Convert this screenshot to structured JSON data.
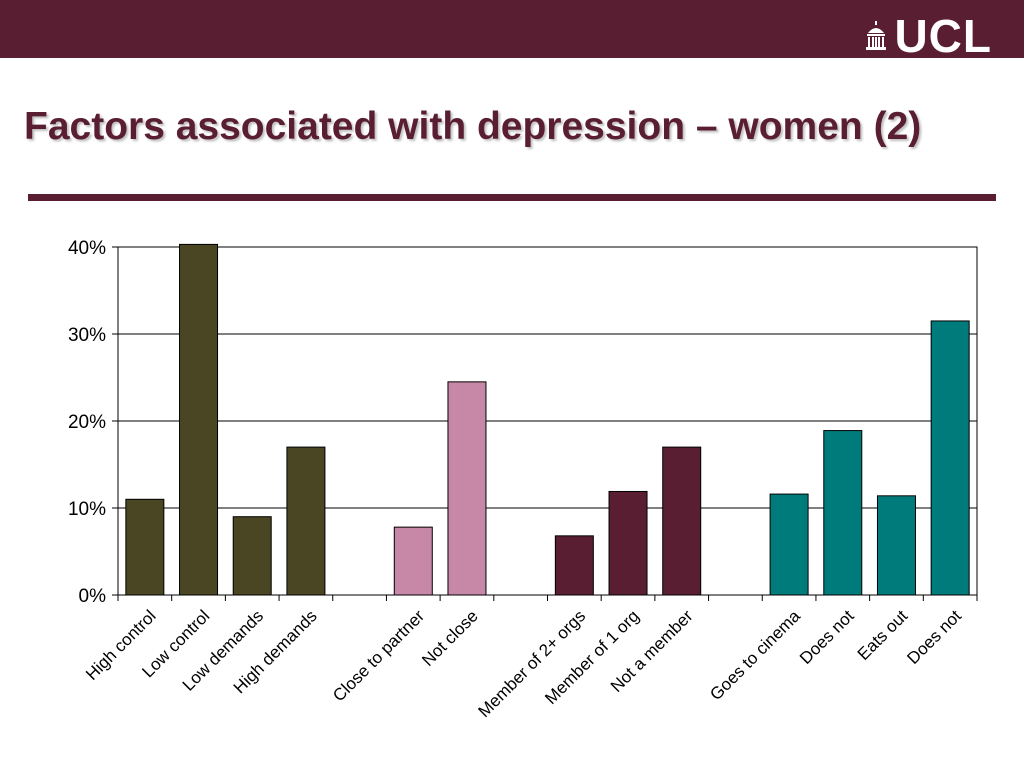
{
  "header": {
    "logo_text": "UCL",
    "logo_icon": "portico-dome-icon"
  },
  "slide": {
    "title": "Factors associated with depression – women (2)"
  },
  "colors": {
    "brand": "#5a1e32",
    "olive": "#4a4523",
    "pink": "#c788a8",
    "maroon": "#5a1e32",
    "teal": "#007b7b"
  },
  "chart_data": {
    "type": "bar",
    "categories": [
      "High control",
      "Low control",
      "Low demands",
      "High demands",
      "",
      "Close to partner",
      "Not close",
      "",
      "Member of 2+ orgs",
      "Member of 1 org",
      "Not a member",
      "",
      "Goes to cinema",
      "Does not",
      "Eats out",
      "Does not"
    ],
    "values": [
      11,
      40.3,
      9,
      17,
      null,
      7.8,
      24.5,
      null,
      6.8,
      11.9,
      17,
      null,
      11.6,
      18.9,
      11.4,
      31.5
    ],
    "bar_colors": [
      "olive",
      "olive",
      "olive",
      "olive",
      null,
      "pink",
      "pink",
      null,
      "maroon",
      "maroon",
      "maroon",
      null,
      "teal",
      "teal",
      "teal",
      "teal"
    ],
    "y_ticks": [
      "0%",
      "10%",
      "20%",
      "30%",
      "40%"
    ],
    "y_unit": "%",
    "ylim": [
      0,
      40
    ],
    "grid": true,
    "legend": "none",
    "title": "",
    "xlabel": "",
    "ylabel": ""
  }
}
